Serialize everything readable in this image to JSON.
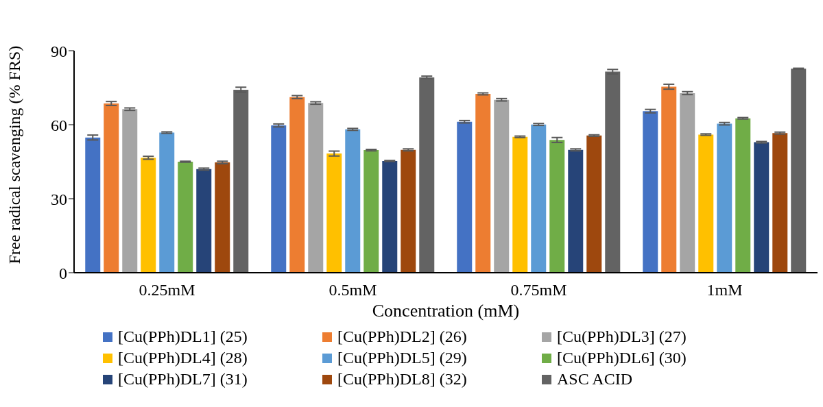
{
  "chart_data": {
    "type": "bar",
    "xlabel": "Concentration (mM)",
    "ylabel": "Free radical scavenging (% FRS)",
    "categories": [
      "0.25mM",
      "0.5mM",
      "0.75mM",
      "1mM"
    ],
    "ylim": [
      0,
      90
    ],
    "yticks": [
      0,
      30,
      60,
      90
    ],
    "grid": false,
    "legend": "bottom",
    "series": [
      {
        "name": "[Cu(PPh)DL1] (25)",
        "color": "#4472c4",
        "values": [
          54.8,
          59.7,
          61.2,
          65.5
        ],
        "errors": [
          1,
          0.6,
          0.5,
          0.7
        ]
      },
      {
        "name": "[Cu(PPh)DL2] (26)",
        "color": "#ed7d31",
        "values": [
          68.6,
          71.2,
          72.5,
          75.4
        ],
        "errors": [
          0.8,
          0.6,
          0.4,
          1
        ]
      },
      {
        "name": "[Cu(PPh)DL3] (27)",
        "color": "#a5a5a5",
        "values": [
          66.3,
          68.8,
          70.1,
          72.8
        ],
        "errors": [
          0.5,
          0.5,
          0.5,
          0.6
        ]
      },
      {
        "name": "[Cu(PPh)DL4] (28)",
        "color": "#ffc000",
        "values": [
          46.6,
          48.3,
          55.1,
          56.0
        ],
        "errors": [
          0.6,
          1,
          0.3,
          0.3
        ]
      },
      {
        "name": "[Cu(PPh)DL5] (29)",
        "color": "#5b9bd5",
        "values": [
          56.8,
          58.1,
          60.1,
          60.4
        ],
        "errors": [
          0.3,
          0.4,
          0.4,
          0.5
        ]
      },
      {
        "name": "[Cu(PPh)DL6] (30)",
        "color": "#70ad47",
        "values": [
          45.0,
          49.7,
          53.8,
          62.6
        ],
        "errors": [
          0.2,
          0.3,
          1,
          0.3
        ]
      },
      {
        "name": "[Cu(PPh)DL7] (31)",
        "color": "#264478",
        "values": [
          42.0,
          45.3,
          49.8,
          52.9
        ],
        "errors": [
          0.4,
          0.2,
          0.4,
          0.3
        ]
      },
      {
        "name": "[Cu(PPh)DL8] (32)",
        "color": "#9e480e",
        "values": [
          44.7,
          49.8,
          55.6,
          56.6
        ],
        "errors": [
          0.5,
          0.4,
          0.3,
          0.4
        ]
      },
      {
        "name": "ASC ACID",
        "color": "#636363",
        "values": [
          74.2,
          79.2,
          81.5,
          82.7
        ],
        "errors": [
          1,
          0.5,
          0.9,
          0.2
        ]
      }
    ]
  }
}
